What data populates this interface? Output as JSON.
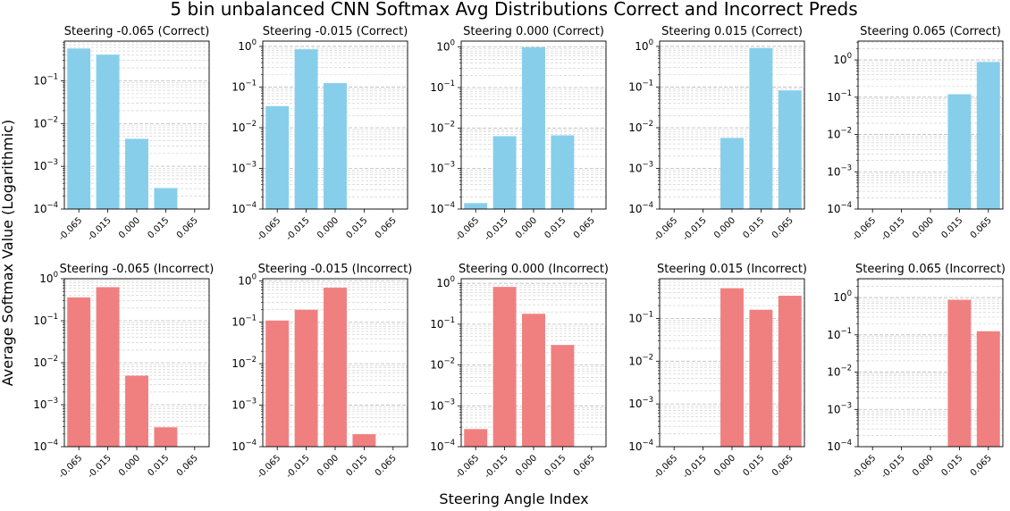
{
  "figure": {
    "suptitle": "5 bin unbalanced CNN Softmax Avg Distributions Correct and Incorrect Preds",
    "xlabel": "Steering Angle Index",
    "ylabel": "Average Softmax Value (Logarithmic)"
  },
  "colors": {
    "correct": "#87ceeb",
    "incorrect": "#f08080"
  },
  "chart_data": [
    {
      "type": "bar",
      "title": "Steering -0.065 (Correct)",
      "categories": [
        "-0.065",
        "-0.015",
        "0.000",
        "0.015",
        "0.065"
      ],
      "values": [
        0.57,
        0.41,
        0.0044,
        0.00031,
        null
      ],
      "ylim": [
        0.0001,
        0.85
      ],
      "yscale": "log",
      "grid": true,
      "color": "correct",
      "ytick_labels": [
        "10^-4",
        "10^-3",
        "10^-2",
        "10^-1"
      ],
      "ytick_values": [
        0.0001,
        0.001,
        0.01,
        0.1
      ]
    },
    {
      "type": "bar",
      "title": "Steering -0.015 (Correct)",
      "categories": [
        "-0.065",
        "-0.015",
        "0.000",
        "0.015",
        "0.065"
      ],
      "values": [
        0.034,
        0.85,
        0.125,
        null,
        null
      ],
      "ylim": [
        0.0001,
        1.35
      ],
      "yscale": "log",
      "grid": true,
      "color": "correct",
      "ytick_labels": [
        "10^-4",
        "10^-3",
        "10^-2",
        "10^-1",
        "10^0"
      ],
      "ytick_values": [
        0.0001,
        0.001,
        0.01,
        0.1,
        1
      ]
    },
    {
      "type": "bar",
      "title": "Steering 0.000 (Correct)",
      "categories": [
        "-0.065",
        "-0.015",
        "0.000",
        "0.015",
        "0.065"
      ],
      "values": [
        0.00014,
        0.0063,
        0.98,
        0.0066,
        null
      ],
      "ylim": [
        0.0001,
        1.4
      ],
      "yscale": "log",
      "grid": true,
      "color": "correct",
      "ytick_labels": [
        "10^-4",
        "10^-3",
        "10^-2",
        "10^-1",
        "10^0"
      ],
      "ytick_values": [
        0.0001,
        0.001,
        0.01,
        0.1,
        1
      ]
    },
    {
      "type": "bar",
      "title": "Steering 0.015 (Correct)",
      "categories": [
        "-0.065",
        "-0.015",
        "0.000",
        "0.015",
        "0.065"
      ],
      "values": [
        null,
        null,
        0.0056,
        0.91,
        0.083
      ],
      "ylim": [
        0.0001,
        1.35
      ],
      "yscale": "log",
      "grid": true,
      "color": "correct",
      "ytick_labels": [
        "10^-4",
        "10^-3",
        "10^-2",
        "10^-1",
        "10^0"
      ],
      "ytick_values": [
        0.0001,
        0.001,
        0.01,
        0.1,
        1
      ]
    },
    {
      "type": "bar",
      "title": "Steering 0.065 (Correct)",
      "categories": [
        "-0.065",
        "-0.015",
        "0.000",
        "0.015",
        "0.065"
      ],
      "values": [
        null,
        null,
        null,
        0.12,
        0.88
      ],
      "ylim": [
        0.0001,
        3.2
      ],
      "yscale": "log",
      "grid": true,
      "color": "correct",
      "ytick_labels": [
        "10^-4",
        "10^-3",
        "10^-2",
        "10^-1",
        "10^0"
      ],
      "ytick_values": [
        0.0001,
        0.001,
        0.01,
        0.1,
        1
      ]
    },
    {
      "type": "bar",
      "title": "Steering -0.065 (Incorrect)",
      "categories": [
        "-0.065",
        "-0.015",
        "0.000",
        "0.015",
        "0.065"
      ],
      "values": [
        0.36,
        0.63,
        0.0049,
        0.00029,
        null
      ],
      "ylim": [
        0.0001,
        1.0
      ],
      "yscale": "log",
      "grid": true,
      "color": "incorrect",
      "ytick_labels": [
        "10^-4",
        "10^-3",
        "10^-2",
        "10^-1",
        "10^0"
      ],
      "ytick_values": [
        0.0001,
        0.001,
        0.01,
        0.1,
        1
      ]
    },
    {
      "type": "bar",
      "title": "Steering -0.015 (Incorrect)",
      "categories": [
        "-0.065",
        "-0.015",
        "0.000",
        "0.015",
        "0.065"
      ],
      "values": [
        0.11,
        0.2,
        0.68,
        0.0002,
        null
      ],
      "ylim": [
        0.0001,
        1.12
      ],
      "yscale": "log",
      "grid": true,
      "color": "incorrect",
      "ytick_labels": [
        "10^-4",
        "10^-3",
        "10^-2",
        "10^-1",
        "10^0"
      ],
      "ytick_values": [
        0.0001,
        0.001,
        0.01,
        0.1,
        1
      ]
    },
    {
      "type": "bar",
      "title": "Steering 0.000 (Incorrect)",
      "categories": [
        "-0.065",
        "-0.015",
        "0.000",
        "0.015",
        "0.065"
      ],
      "values": [
        0.00027,
        0.82,
        0.18,
        0.031,
        null
      ],
      "ylim": [
        0.0001,
        1.3
      ],
      "yscale": "log",
      "grid": true,
      "color": "incorrect",
      "ytick_labels": [
        "10^-4",
        "10^-3",
        "10^-2",
        "10^-1",
        "10^0"
      ],
      "ytick_values": [
        0.0001,
        0.001,
        0.01,
        0.1,
        1
      ]
    },
    {
      "type": "bar",
      "title": "Steering 0.015 (Incorrect)",
      "categories": [
        "-0.065",
        "-0.015",
        "0.000",
        "0.015",
        "0.065"
      ],
      "values": [
        null,
        null,
        0.51,
        0.16,
        0.34
      ],
      "ylim": [
        0.0001,
        0.85
      ],
      "yscale": "log",
      "grid": true,
      "color": "incorrect",
      "ytick_labels": [
        "10^-4",
        "10^-3",
        "10^-2",
        "10^-1"
      ],
      "ytick_values": [
        0.0001,
        0.001,
        0.01,
        0.1
      ]
    },
    {
      "type": "bar",
      "title": "Steering 0.065 (Incorrect)",
      "categories": [
        "-0.065",
        "-0.015",
        "0.000",
        "0.015",
        "0.065"
      ],
      "values": [
        null,
        null,
        null,
        0.87,
        0.125
      ],
      "ylim": [
        0.0001,
        3.2
      ],
      "yscale": "log",
      "grid": true,
      "color": "incorrect",
      "ytick_labels": [
        "10^-4",
        "10^-3",
        "10^-2",
        "10^-1",
        "10^0"
      ],
      "ytick_values": [
        0.0001,
        0.001,
        0.01,
        0.1,
        1
      ]
    }
  ]
}
